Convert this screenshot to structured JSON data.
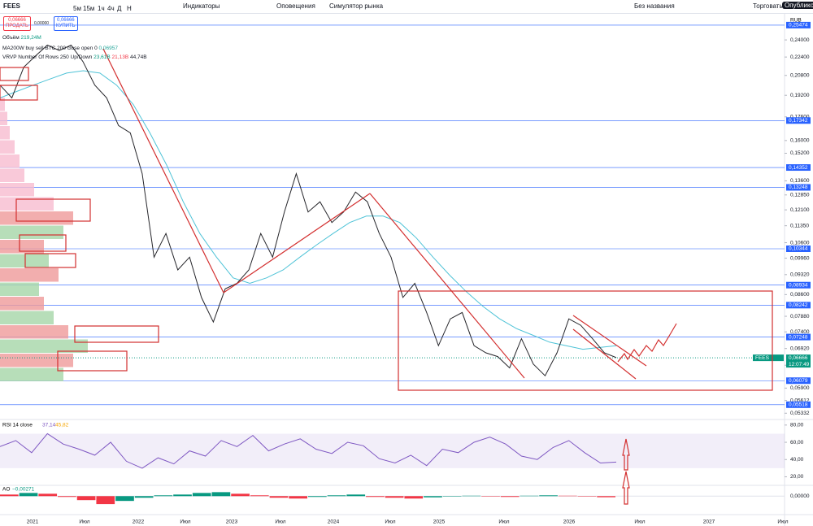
{
  "toolbar": {
    "symbol": "FEES",
    "intervals": [
      "5м",
      "15м",
      "1ч",
      "4ч",
      "Д",
      "Н"
    ],
    "indicators": "Индикаторы",
    "alerts": "Оповещения",
    "replay": "Симулятор рынка",
    "layout_name": "Без названия",
    "trade": "Торговать",
    "publish": "Опубликовать"
  },
  "order_panel": {
    "sell_price": "0,06666",
    "sell": "ПРОДАТЬ",
    "spread": "0,00000",
    "buy_price": "0,06666",
    "buy": "КУПИТЬ"
  },
  "legend": {
    "volume": "Объём",
    "volume_value": "219,24M",
    "ma": "MA200W buy sell BTC 200 close open 0",
    "ma_value": "0,06957",
    "vrvp": "VRVP Number Of Rows 250 Up/Down",
    "vrvp_up": "23,61B",
    "vrvp_down": "21,13B",
    "vrvp_total": "44,74B"
  },
  "price_chart": {
    "currency": "RUB",
    "log_scale": true,
    "ylim": [
      0.0525,
      0.264
    ],
    "yticks": [
      {
        "value": 0.24,
        "label": "0,24000"
      },
      {
        "value": 0.224,
        "label": "0,22400"
      },
      {
        "value": 0.208,
        "label": "0,20800"
      },
      {
        "value": 0.192,
        "label": "0,19200"
      },
      {
        "value": 0.176,
        "label": "0,17600"
      },
      {
        "value": 0.16,
        "label": "0,16000"
      },
      {
        "value": 0.152,
        "label": "0,15200"
      },
      {
        "value": 0.136,
        "label": "0,13600"
      },
      {
        "value": 0.1285,
        "label": "0,12850"
      },
      {
        "value": 0.121,
        "label": "0,12100"
      },
      {
        "value": 0.1135,
        "label": "0,11350"
      },
      {
        "value": 0.106,
        "label": "0,10600"
      },
      {
        "value": 0.0996,
        "label": "0,09960"
      },
      {
        "value": 0.0932,
        "label": "0,09320"
      },
      {
        "value": 0.086,
        "label": "0,08600"
      },
      {
        "value": 0.0788,
        "label": "0,07880"
      },
      {
        "value": 0.074,
        "label": "0,07400"
      },
      {
        "value": 0.0692,
        "label": "0,06920"
      },
      {
        "value": 0.0647,
        "label": "0,06470"
      },
      {
        "value": 0.059,
        "label": "0,05900"
      },
      {
        "value": 0.05612,
        "label": "0,05612"
      },
      {
        "value": 0.05332,
        "label": "0,05332"
      }
    ],
    "levels": [
      {
        "value": 0.25474,
        "label": "0,25474"
      },
      {
        "value": 0.17342,
        "label": "0,17342"
      },
      {
        "value": 0.14352,
        "label": "0,14352"
      },
      {
        "value": 0.13248,
        "label": "0,13248"
      },
      {
        "value": 0.10344,
        "label": "0,10344"
      },
      {
        "value": 0.08934,
        "label": "0,08934"
      },
      {
        "value": 0.08242,
        "label": "0,08242"
      },
      {
        "value": 0.07248,
        "label": "0,07248"
      },
      {
        "value": 0.06079,
        "label": "0,06079"
      },
      {
        "value": 0.05518,
        "label": "0,05518"
      }
    ],
    "last_price": {
      "symbol": "FEES",
      "value": 0.06666,
      "label": "0,06666",
      "countdown": "12:07:49"
    },
    "close": [
      0.2,
      0.19,
      0.215,
      0.225,
      0.235,
      0.23,
      0.235,
      0.22,
      0.2,
      0.19,
      0.17,
      0.165,
      0.14,
      0.1,
      0.11,
      0.095,
      0.1,
      0.085,
      0.077,
      0.088,
      0.09,
      0.095,
      0.11,
      0.1,
      0.12,
      0.14,
      0.12,
      0.125,
      0.115,
      0.12,
      0.13,
      0.125,
      0.11,
      0.1,
      0.085,
      0.09,
      0.08,
      0.07,
      0.078,
      0.08,
      0.07,
      0.068,
      0.067,
      0.064,
      0.072,
      0.065,
      0.062,
      0.068,
      0.078,
      0.076,
      0.072,
      0.068,
      0.0667
    ],
    "ma": [
      0.19,
      0.195,
      0.2,
      0.205,
      0.21,
      0.212,
      0.21,
      0.2,
      0.185,
      0.165,
      0.145,
      0.125,
      0.11,
      0.1,
      0.092,
      0.09,
      0.092,
      0.095,
      0.1,
      0.105,
      0.11,
      0.115,
      0.118,
      0.118,
      0.115,
      0.108,
      0.1,
      0.093,
      0.087,
      0.082,
      0.078,
      0.075,
      0.073,
      0.071,
      0.07,
      0.069,
      0.0695,
      0.07
    ]
  },
  "volume_profile": [
    2,
    3,
    4,
    6,
    8,
    10,
    14,
    22,
    30,
    26,
    18,
    20,
    24,
    16,
    18,
    22,
    28,
    36,
    30,
    26
  ],
  "rsi": {
    "title": "RSI 14 close",
    "value": "37,14",
    "ma_value": "45,82",
    "ylim": [
      11,
      85.5
    ],
    "yticks": [
      {
        "value": 80,
        "label": "80,00"
      },
      {
        "value": 60,
        "label": "60,00"
      },
      {
        "value": 40,
        "label": "40,00"
      },
      {
        "value": 20,
        "label": "20,00"
      }
    ],
    "band": [
      30,
      70
    ],
    "values": [
      55,
      62,
      48,
      70,
      58,
      52,
      45,
      60,
      38,
      30,
      42,
      35,
      50,
      44,
      62,
      55,
      68,
      50,
      58,
      64,
      52,
      47,
      60,
      56,
      41,
      36,
      45,
      33,
      52,
      48,
      60,
      66,
      58,
      44,
      40,
      54,
      62,
      48,
      36,
      37
    ]
  },
  "ao": {
    "title": "AO",
    "value": "−0,00271",
    "ylim": [
      -0.03,
      0.025
    ],
    "yticks": [
      {
        "value": 0,
        "label": "0,00000"
      }
    ],
    "values": [
      0.004,
      0.008,
      0.006,
      -0.002,
      -0.01,
      -0.02,
      -0.012,
      -0.004,
      0.002,
      0.004,
      0.008,
      0.01,
      0.006,
      0.002,
      -0.004,
      -0.006,
      -0.002,
      0.002,
      0.004,
      -0.002,
      -0.004,
      -0.006,
      -0.003,
      -0.001,
      0.001,
      -0.001,
      -0.002,
      0.001,
      0.002,
      0.001,
      -0.001,
      -0.00271
    ]
  },
  "time_axis": [
    "2021",
    "Июл",
    "2022",
    "Июл",
    "2023",
    "Июл",
    "2024",
    "Июл",
    "2025",
    "Июл",
    "2026",
    "Июл",
    "2027",
    "Июл"
  ]
}
